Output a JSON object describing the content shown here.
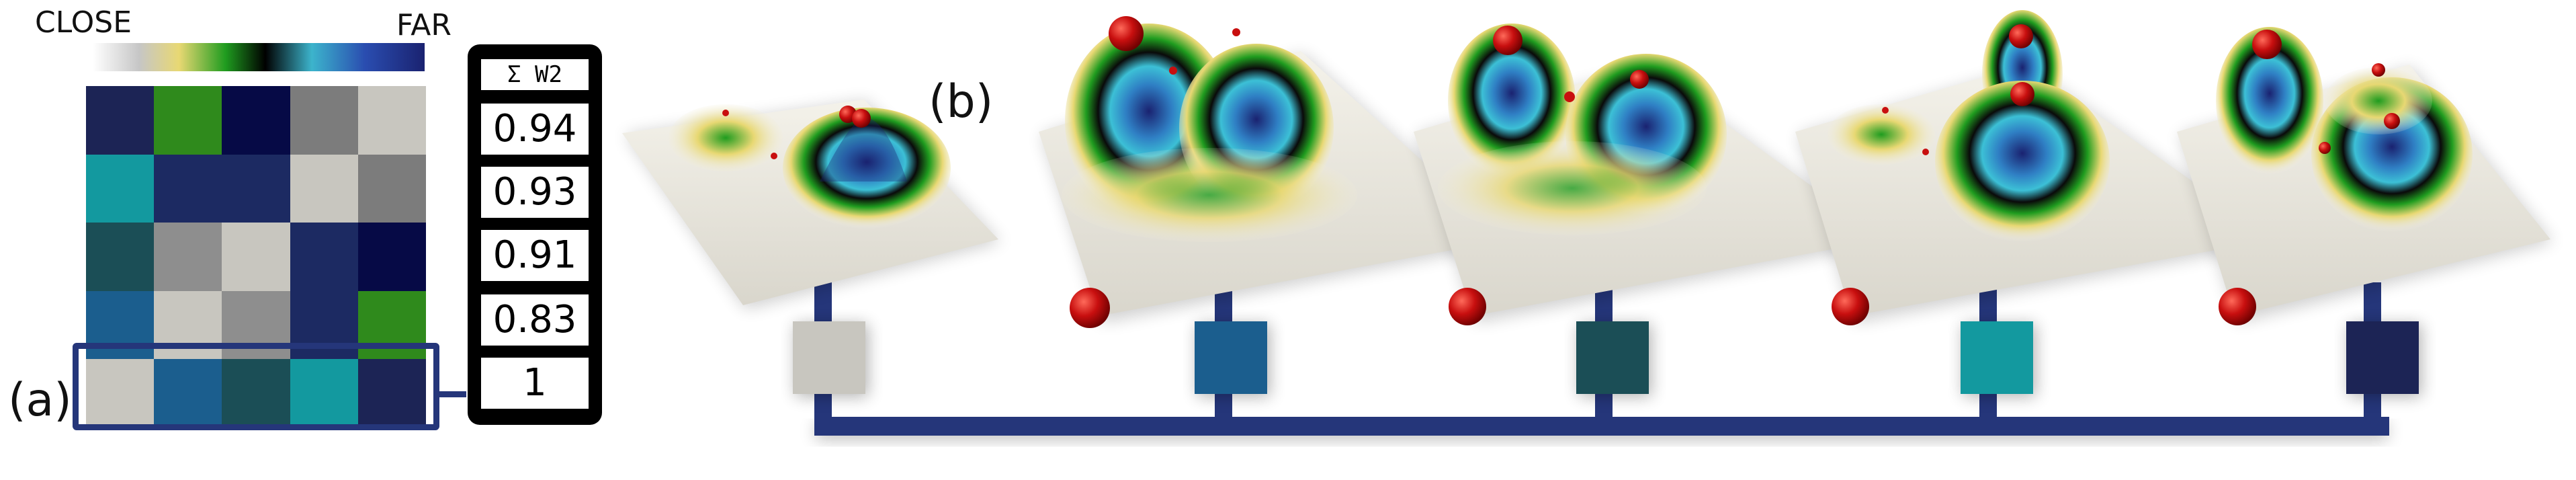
{
  "colorbar": {
    "close_label": "CLOSE",
    "far_label": "FAR"
  },
  "labels": {
    "a": "(a)",
    "b": "(b)"
  },
  "score_panel": {
    "header": "Σ W2",
    "values": [
      "0.94",
      "0.93",
      "0.91",
      "0.83",
      "1"
    ]
  },
  "matrix": {
    "rows": [
      [
        "#1c2455",
        "#2f8a1c",
        "#060a46",
        "#7c7c7c",
        "#c8c6bf"
      ],
      [
        "#13999f",
        "#1c2a62",
        "#1c2a62",
        "#c8c6bf",
        "#7c7c7c"
      ],
      [
        "#1b4e56",
        "#8e8e8e",
        "#c8c6bf",
        "#1c2a62",
        "#060a46"
      ],
      [
        "#1b5e8e",
        "#c8c6bf",
        "#8e8e8e",
        "#1c2a62",
        "#2f8a1c"
      ],
      [
        "#c8c6bf",
        "#1b5e8e",
        "#1b4e56",
        "#13999f",
        "#1c2455"
      ]
    ]
  },
  "connector_color": "#25367a",
  "node_colors": [
    "#c8c6bf",
    "#1b5e8e",
    "#1b4e56",
    "#13999f",
    "#1c2455"
  ]
}
